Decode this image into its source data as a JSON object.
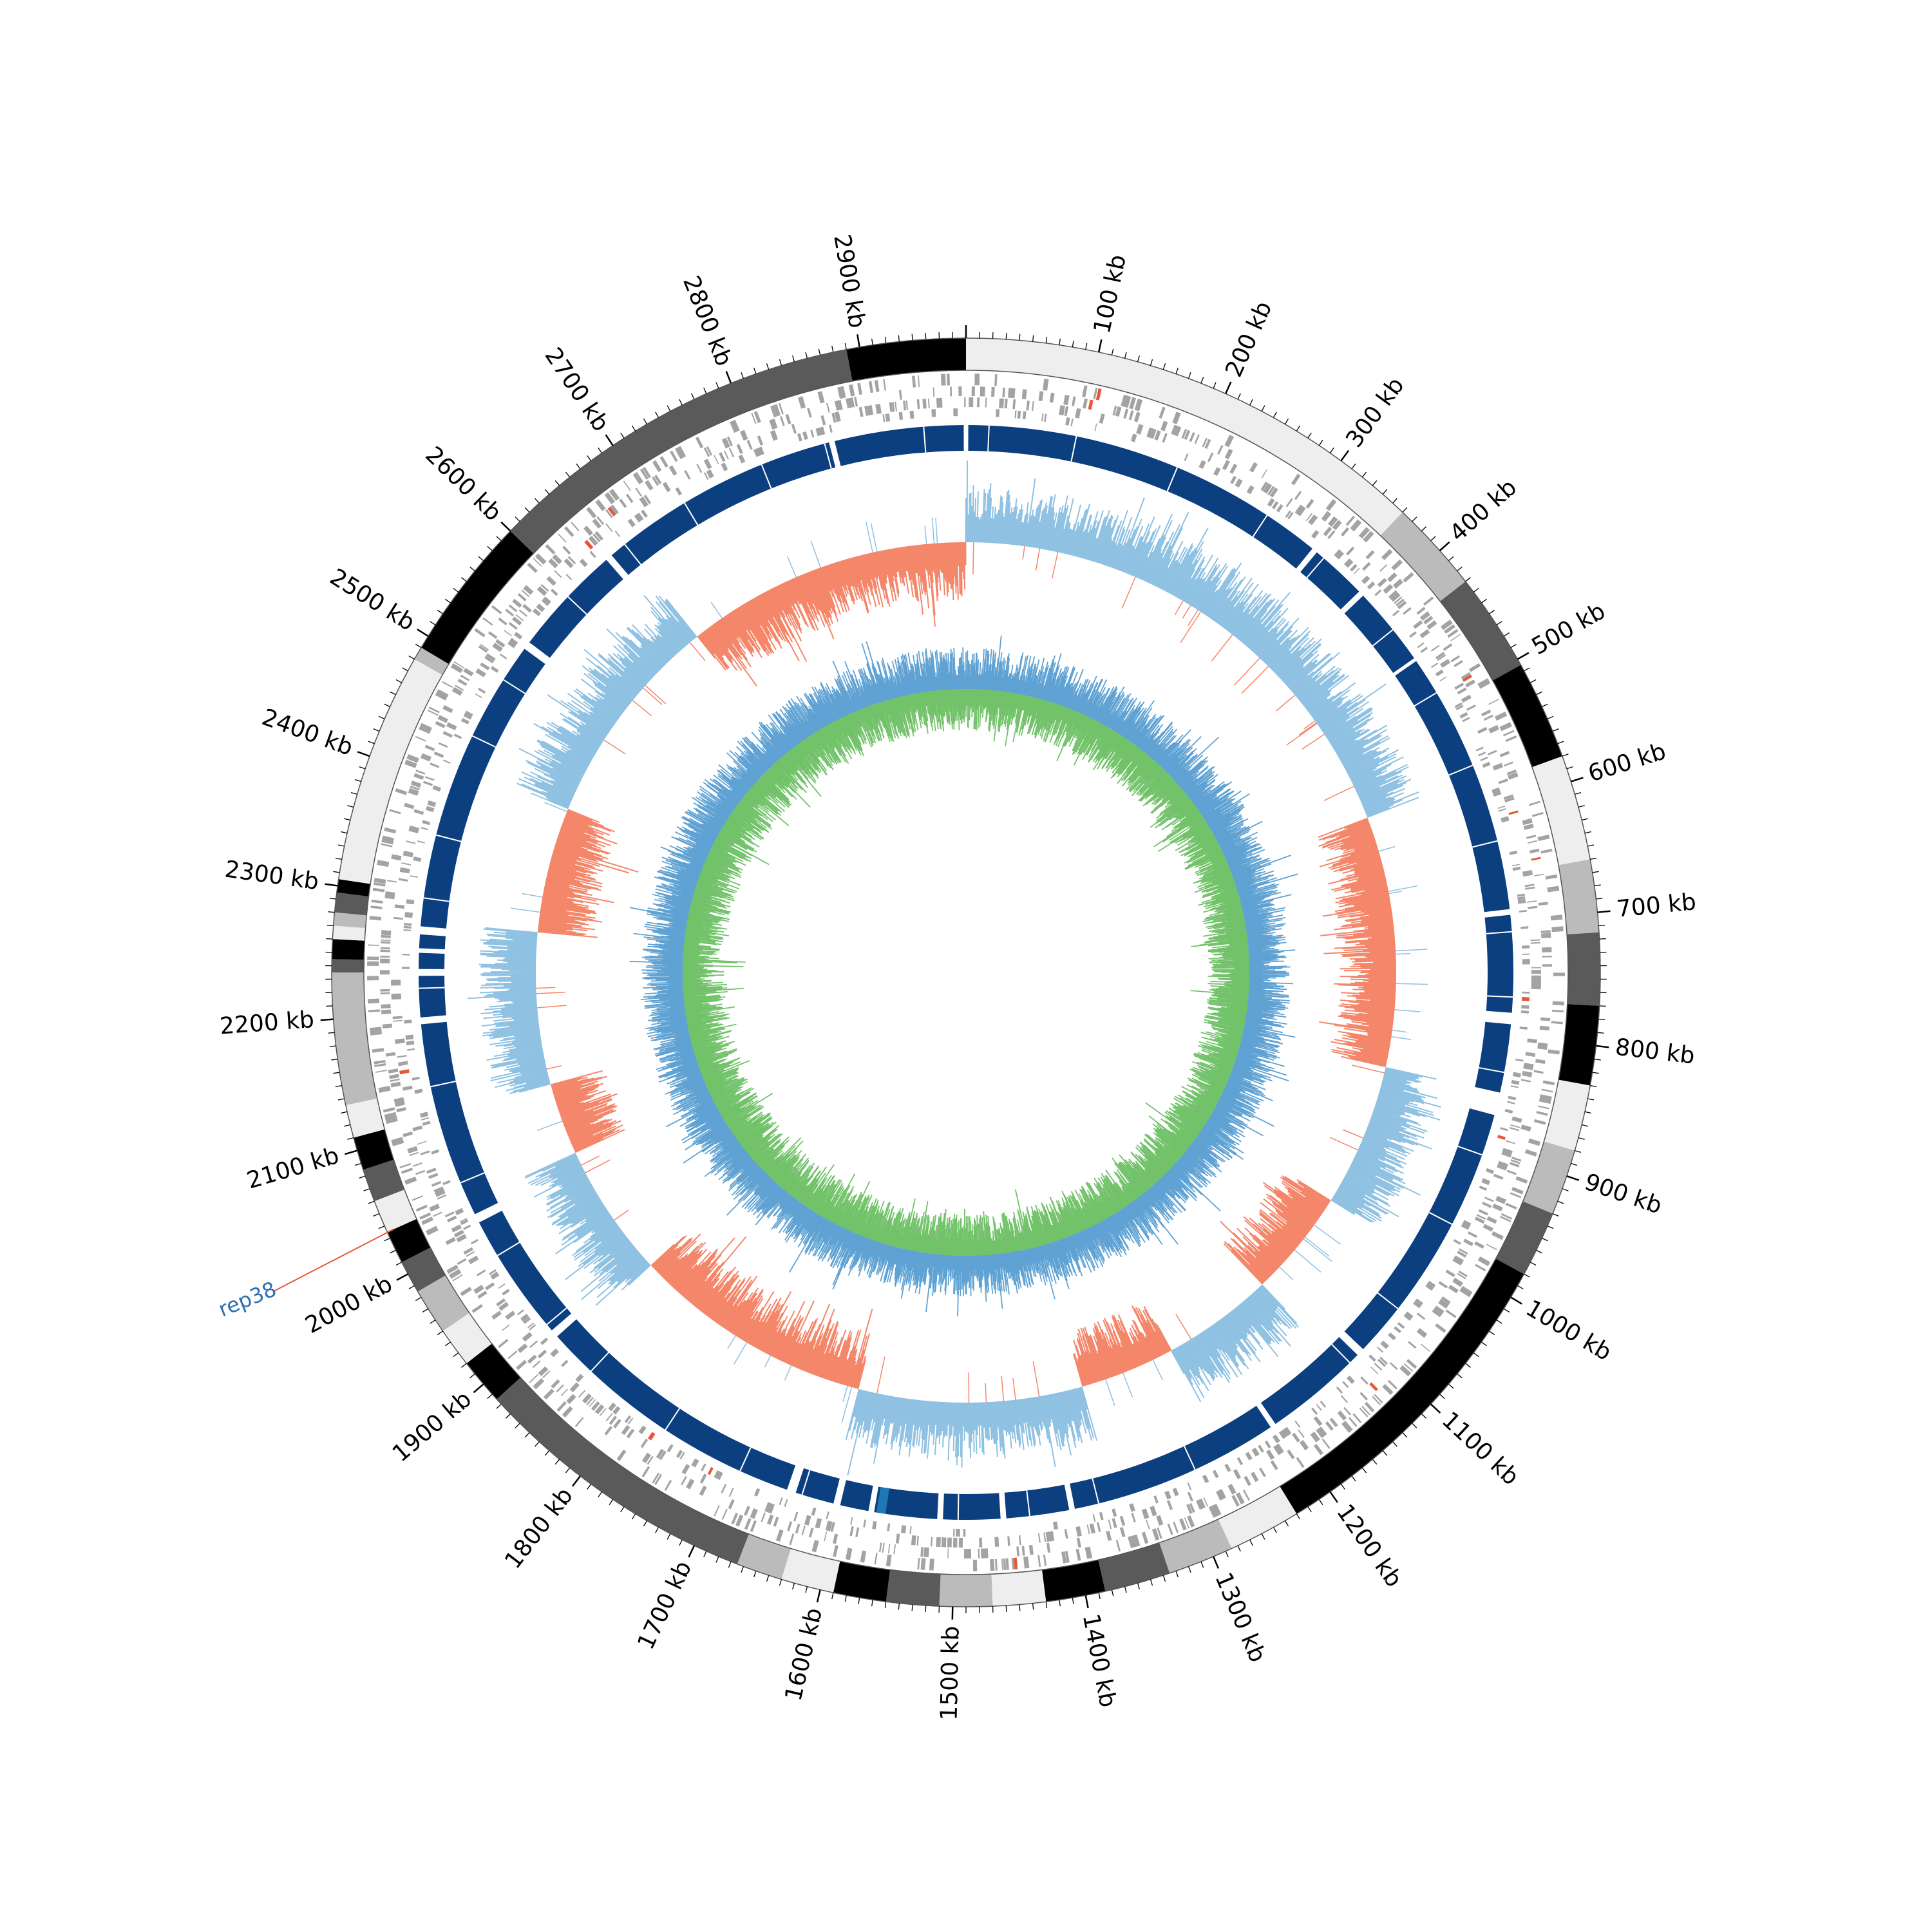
{
  "genome": {
    "length_kb": 2980,
    "tick_labels": [
      "100 kb",
      "200 kb",
      "300 kb",
      "400 kb",
      "500 kb",
      "600 kb",
      "700 kb",
      "800 kb",
      "900 kb",
      "1000 kb",
      "1100 kb",
      "1200 kb",
      "1300 kb",
      "1400 kb",
      "1500 kb",
      "1600 kb",
      "1700 kb",
      "1800 kb",
      "1900 kb",
      "2000 kb",
      "2100 kb",
      "2200 kb",
      "2300 kb",
      "2400 kb",
      "2500 kb",
      "2600 kb",
      "2700 kb",
      "2800 kb",
      "2900 kb"
    ],
    "tick_positions_kb": [
      100,
      200,
      300,
      400,
      500,
      600,
      700,
      800,
      900,
      1000,
      1100,
      1200,
      1300,
      1400,
      1500,
      1600,
      1700,
      1800,
      1900,
      2000,
      2100,
      2200,
      2300,
      2400,
      2500,
      2600,
      2700,
      2800,
      2900
    ]
  },
  "callout": {
    "label": "rep38",
    "position_kb": 2035,
    "label_color": "#2b6fb0",
    "line_color": "#e8563a"
  },
  "segments": [
    {
      "start": 0,
      "end": 360,
      "shade": "#eeeeee"
    },
    {
      "start": 360,
      "end": 430,
      "shade": "#bbbbbb"
    },
    {
      "start": 430,
      "end": 505,
      "shade": "#5a5a5a"
    },
    {
      "start": 505,
      "end": 580,
      "shade": "#000000"
    },
    {
      "start": 580,
      "end": 660,
      "shade": "#eeeeee"
    },
    {
      "start": 660,
      "end": 715,
      "shade": "#bbbbbb"
    },
    {
      "start": 715,
      "end": 770,
      "shade": "#5a5a5a"
    },
    {
      "start": 770,
      "end": 830,
      "shade": "#000000"
    },
    {
      "start": 830,
      "end": 880,
      "shade": "#eeeeee"
    },
    {
      "start": 880,
      "end": 930,
      "shade": "#bbbbbb"
    },
    {
      "start": 930,
      "end": 980,
      "shade": "#5a5a5a"
    },
    {
      "start": 980,
      "end": 1230,
      "shade": "#000000"
    },
    {
      "start": 1230,
      "end": 1285,
      "shade": "#eeeeee"
    },
    {
      "start": 1285,
      "end": 1335,
      "shade": "#bbbbbb"
    },
    {
      "start": 1335,
      "end": 1385,
      "shade": "#5a5a5a"
    },
    {
      "start": 1385,
      "end": 1430,
      "shade": "#000000"
    },
    {
      "start": 1430,
      "end": 1470,
      "shade": "#eeeeee"
    },
    {
      "start": 1470,
      "end": 1510,
      "shade": "#bbbbbb"
    },
    {
      "start": 1510,
      "end": 1550,
      "shade": "#5a5a5a"
    },
    {
      "start": 1550,
      "end": 1590,
      "shade": "#000000"
    },
    {
      "start": 1590,
      "end": 1630,
      "shade": "#eeeeee"
    },
    {
      "start": 1630,
      "end": 1665,
      "shade": "#bbbbbb"
    },
    {
      "start": 1665,
      "end": 1885,
      "shade": "#5a5a5a"
    },
    {
      "start": 1885,
      "end": 1920,
      "shade": "#000000"
    },
    {
      "start": 1920,
      "end": 1950,
      "shade": "#eeeeee"
    },
    {
      "start": 1950,
      "end": 1985,
      "shade": "#bbbbbb"
    },
    {
      "start": 1985,
      "end": 2010,
      "shade": "#5a5a5a"
    },
    {
      "start": 2010,
      "end": 2035,
      "shade": "#000000"
    },
    {
      "start": 2035,
      "end": 2060,
      "shade": "#eeeeee"
    },
    {
      "start": 2060,
      "end": 2085,
      "shade": "#5a5a5a"
    },
    {
      "start": 2085,
      "end": 2110,
      "shade": "#000000"
    },
    {
      "start": 2110,
      "end": 2135,
      "shade": "#eeeeee"
    },
    {
      "start": 2135,
      "end": 2235,
      "shade": "#bbbbbb"
    },
    {
      "start": 2235,
      "end": 2245,
      "shade": "#5a5a5a"
    },
    {
      "start": 2245,
      "end": 2260,
      "shade": "#000000"
    },
    {
      "start": 2260,
      "end": 2270,
      "shade": "#eeeeee"
    },
    {
      "start": 2270,
      "end": 2280,
      "shade": "#bbbbbb"
    },
    {
      "start": 2280,
      "end": 2295,
      "shade": "#5a5a5a"
    },
    {
      "start": 2295,
      "end": 2305,
      "shade": "#000000"
    },
    {
      "start": 2305,
      "end": 2480,
      "shade": "#eeeeee"
    },
    {
      "start": 2480,
      "end": 2490,
      "shade": "#bbbbbb"
    },
    {
      "start": 2490,
      "end": 2600,
      "shade": "#000000"
    },
    {
      "start": 2600,
      "end": 2890,
      "shade": "#5a5a5a"
    },
    {
      "start": 2890,
      "end": 2980,
      "shade": "#000000"
    }
  ],
  "blocks": [
    {
      "start": 2,
      "end": 325
    },
    {
      "start": 330,
      "end": 380
    },
    {
      "start": 385,
      "end": 455
    },
    {
      "start": 458,
      "end": 690
    },
    {
      "start": 695,
      "end": 780
    },
    {
      "start": 790,
      "end": 850
    },
    {
      "start": 870,
      "end": 1105
    },
    {
      "start": 1112,
      "end": 1205
    },
    {
      "start": 1210,
      "end": 1395
    },
    {
      "start": 1400,
      "end": 1455
    },
    {
      "start": 1460,
      "end": 1510
    },
    {
      "start": 1515,
      "end": 1570
    },
    {
      "start": 1575,
      "end": 1600
    },
    {
      "start": 1606,
      "end": 1640
    },
    {
      "start": 1648,
      "end": 1890
    },
    {
      "start": 1897,
      "end": 2010
    },
    {
      "start": 2018,
      "end": 2190
    },
    {
      "start": 2196,
      "end": 2232
    },
    {
      "start": 2238,
      "end": 2252
    },
    {
      "start": 2256,
      "end": 2268
    },
    {
      "start": 2275,
      "end": 2535
    },
    {
      "start": 2542,
      "end": 2640
    },
    {
      "start": 2646,
      "end": 2860
    },
    {
      "start": 2865,
      "end": 2978
    }
  ],
  "skew_regions": [
    {
      "start": 0,
      "end": 570,
      "sign": "positive"
    },
    {
      "start": 570,
      "end": 850,
      "sign": "negative"
    },
    {
      "start": 850,
      "end": 1010,
      "sign": "positive"
    },
    {
      "start": 1010,
      "end": 1130,
      "sign": "negative"
    },
    {
      "start": 1130,
      "end": 1255,
      "sign": "positive"
    },
    {
      "start": 1255,
      "end": 1360,
      "sign": "negative"
    },
    {
      "start": 1360,
      "end": 1610,
      "sign": "positive"
    },
    {
      "start": 1610,
      "end": 1880,
      "sign": "negative"
    },
    {
      "start": 1880,
      "end": 2030,
      "sign": "positive"
    },
    {
      "start": 2030,
      "end": 2110,
      "sign": "negative"
    },
    {
      "start": 2110,
      "end": 2280,
      "sign": "positive"
    },
    {
      "start": 2280,
      "end": 2420,
      "sign": "negative"
    },
    {
      "start": 2420,
      "end": 2660,
      "sign": "positive"
    },
    {
      "start": 2660,
      "end": 2980,
      "sign": "negative"
    }
  ],
  "colors": {
    "ideogram_outline": "#555555",
    "feature_gray": "#a3a3a3",
    "feature_red": "#e8563a",
    "block_fill": "#0b3f7f",
    "block_accent": "#1f78b4",
    "skew_positive": "#8fc1e2",
    "skew_negative": "#f4866a",
    "gc_outer": "#5fa2d3",
    "gc_inner": "#72c26a",
    "tick": "#000000"
  }
}
